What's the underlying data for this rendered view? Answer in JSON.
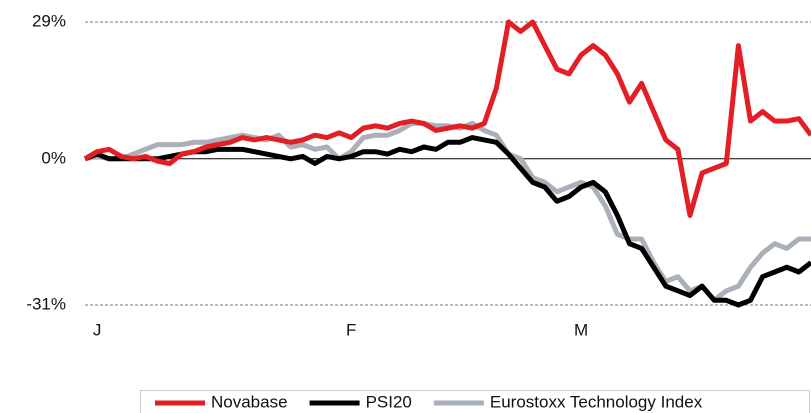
{
  "chart_data": {
    "type": "line",
    "categories": [
      null,
      "J",
      null,
      null,
      null,
      null,
      null,
      null,
      null,
      null,
      null,
      null,
      null,
      null,
      null,
      null,
      null,
      null,
      null,
      null,
      null,
      null,
      "F",
      null,
      null,
      null,
      null,
      null,
      null,
      null,
      null,
      null,
      null,
      null,
      null,
      null,
      null,
      null,
      null,
      null,
      null,
      "M",
      null,
      null,
      null,
      null,
      null,
      null,
      null,
      null,
      null,
      null,
      null,
      null,
      null,
      null,
      null,
      null,
      null,
      null,
      null
    ],
    "series": [
      {
        "name": "Novabase",
        "color": "#e31e24",
        "values": [
          0,
          1.5,
          2,
          0.5,
          0,
          0.5,
          -0.5,
          -1,
          1,
          1.5,
          2.5,
          3,
          3.5,
          4.5,
          4,
          4.5,
          4,
          3.5,
          4,
          5,
          4.5,
          5.5,
          4.5,
          6.5,
          7,
          6.5,
          7.5,
          8,
          7.5,
          6,
          6.5,
          7,
          6.5,
          7.5,
          15,
          29,
          27,
          29,
          24,
          19,
          18,
          22,
          24,
          22,
          18,
          12,
          16,
          10,
          4,
          2,
          -12,
          -3,
          -2,
          -1,
          24,
          8,
          10,
          8,
          8,
          8.5,
          5
        ]
      },
      {
        "name": "PSI20",
        "color": "#000000",
        "values": [
          0,
          1,
          0,
          0,
          0,
          0,
          0,
          0.5,
          1,
          1.5,
          1.5,
          2,
          2,
          2,
          1.5,
          1,
          0.5,
          0,
          0.5,
          -1,
          0.5,
          0,
          0.5,
          1.5,
          1.5,
          1,
          2,
          1.5,
          2.5,
          2,
          3.5,
          3.5,
          4.5,
          4,
          3.5,
          1,
          -2,
          -5,
          -6,
          -9,
          -8,
          -6,
          -5,
          -7,
          -12,
          -18,
          -19,
          -23,
          -27,
          -28,
          -29,
          -27,
          -30,
          -30,
          -31,
          -30,
          -25,
          -24,
          -23,
          -24,
          -22
        ]
      },
      {
        "name": "Eurostoxx Technology Index",
        "color": "#aab0b8",
        "values": [
          0,
          0.5,
          0,
          0,
          1,
          2,
          3,
          3,
          3,
          3.5,
          3.5,
          4,
          4.5,
          5,
          4.5,
          4,
          5,
          2.5,
          3,
          2,
          2.5,
          0,
          1.5,
          4.5,
          5,
          5,
          6,
          7.5,
          7.5,
          7,
          7,
          6.5,
          7.5,
          6,
          5,
          1,
          0,
          -4,
          -5,
          -7,
          -6,
          -5,
          -6,
          -10,
          -16,
          -17,
          -17,
          -22,
          -26,
          -25,
          -28,
          -27,
          -30,
          -28,
          -27,
          -23,
          -20,
          -18,
          -19,
          -17,
          -17
        ]
      }
    ],
    "ylim": [
      -31,
      29
    ],
    "yticks": [
      {
        "value": 29,
        "label": "29%"
      },
      {
        "value": 0,
        "label": "0%"
      },
      {
        "value": -31,
        "label": "-31%"
      }
    ],
    "grid": true,
    "legend": "bottom"
  }
}
